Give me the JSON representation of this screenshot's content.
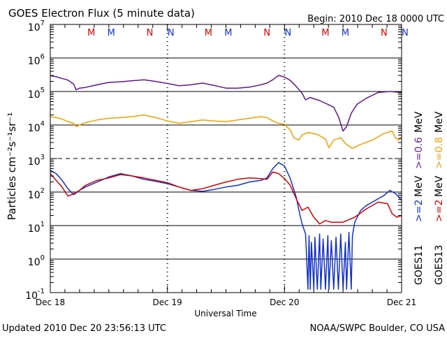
{
  "chart_data": {
    "type": "line",
    "title": "GOES Electron Flux (5 minute data)",
    "begin_label": "Begin: 2010 Dec 18 0000 UTC",
    "xlabel": "Universal Time",
    "ylabel": "Particles cm⁻²s⁻¹sr⁻¹",
    "ylim_log10": [
      -1,
      7
    ],
    "xlim_days": [
      0,
      3
    ],
    "x_ticks": [
      {
        "day": 0,
        "label": "Dec 18"
      },
      {
        "day": 1,
        "label": "Dec 19"
      },
      {
        "day": 2,
        "label": "Dec 20"
      },
      {
        "day": 3,
        "label": "Dec 21"
      }
    ],
    "y_ticks": [
      {
        "base": "10",
        "exp": "7"
      },
      {
        "base": "10",
        "exp": "6"
      },
      {
        "base": "10",
        "exp": "5"
      },
      {
        "base": "10",
        "exp": "4"
      },
      {
        "base": "10",
        "exp": "3"
      },
      {
        "base": "10",
        "exp": "2"
      },
      {
        "base": "10",
        "exp": "1"
      },
      {
        "base": "10",
        "exp": "0"
      },
      {
        "base": "10",
        "exp": "-1"
      }
    ],
    "markers": [
      {
        "day": 0.35,
        "letter": "M",
        "color": "#d40000"
      },
      {
        "day": 0.52,
        "letter": "M",
        "color": "#1432c8"
      },
      {
        "day": 0.85,
        "letter": "N",
        "color": "#d40000"
      },
      {
        "day": 1.03,
        "letter": "N",
        "color": "#1432c8"
      },
      {
        "day": 1.35,
        "letter": "M",
        "color": "#d40000"
      },
      {
        "day": 1.52,
        "letter": "M",
        "color": "#1432c8"
      },
      {
        "day": 1.85,
        "letter": "N",
        "color": "#d40000"
      },
      {
        "day": 2.03,
        "letter": "N",
        "color": "#1432c8"
      },
      {
        "day": 2.35,
        "letter": "M",
        "color": "#d40000"
      },
      {
        "day": 2.52,
        "letter": "M",
        "color": "#1432c8"
      },
      {
        "day": 2.85,
        "letter": "N",
        "color": "#d40000"
      },
      {
        "day": 3.03,
        "letter": "N",
        "color": "#1432c8"
      }
    ],
    "legend": {
      "goes11_label": "GOES11",
      "goes13_label": "GOES13",
      "entries": [
        {
          "text": ">=2",
          "color": "#1432c8"
        },
        {
          "text": ">=2",
          "color": "#d40000"
        },
        {
          "text": ">=0.6",
          "color": "#6a1f9a"
        },
        {
          "text": ">=0.8",
          "color": "#f0a000"
        }
      ],
      "unit": "MeV"
    },
    "series": [
      {
        "name": "GOES11 >=0.6 MeV",
        "color": "#5c1a8c",
        "points": [
          [
            0,
            5.47
          ],
          [
            0.05,
            5.44
          ],
          [
            0.1,
            5.39
          ],
          [
            0.15,
            5.34
          ],
          [
            0.2,
            5.22
          ],
          [
            0.22,
            5.05
          ],
          [
            0.25,
            5.1
          ],
          [
            0.3,
            5.12
          ],
          [
            0.4,
            5.2
          ],
          [
            0.5,
            5.27
          ],
          [
            0.6,
            5.29
          ],
          [
            0.7,
            5.32
          ],
          [
            0.8,
            5.35
          ],
          [
            0.9,
            5.3
          ],
          [
            1.0,
            5.24
          ],
          [
            1.1,
            5.17
          ],
          [
            1.2,
            5.2
          ],
          [
            1.3,
            5.25
          ],
          [
            1.4,
            5.18
          ],
          [
            1.5,
            5.1
          ],
          [
            1.6,
            5.1
          ],
          [
            1.7,
            5.13
          ],
          [
            1.8,
            5.2
          ],
          [
            1.85,
            5.25
          ],
          [
            1.9,
            5.35
          ],
          [
            1.95,
            5.48
          ],
          [
            2.0,
            5.43
          ],
          [
            2.05,
            5.33
          ],
          [
            2.1,
            5.15
          ],
          [
            2.15,
            4.95
          ],
          [
            2.18,
            4.75
          ],
          [
            2.22,
            4.82
          ],
          [
            2.3,
            4.73
          ],
          [
            2.38,
            4.6
          ],
          [
            2.42,
            4.53
          ],
          [
            2.46,
            4.25
          ],
          [
            2.5,
            3.82
          ],
          [
            2.53,
            3.95
          ],
          [
            2.57,
            4.35
          ],
          [
            2.62,
            4.62
          ],
          [
            2.7,
            4.8
          ],
          [
            2.8,
            4.97
          ],
          [
            2.9,
            5.0
          ],
          [
            3.0,
            4.97
          ]
        ]
      },
      {
        "name": "GOES13 >=0.8 MeV",
        "color": "#f0a000",
        "points": [
          [
            0,
            4.25
          ],
          [
            0.05,
            4.22
          ],
          [
            0.1,
            4.18
          ],
          [
            0.15,
            4.1
          ],
          [
            0.2,
            4.05
          ],
          [
            0.22,
            3.95
          ],
          [
            0.25,
            4.0
          ],
          [
            0.3,
            4.07
          ],
          [
            0.4,
            4.15
          ],
          [
            0.5,
            4.2
          ],
          [
            0.6,
            4.22
          ],
          [
            0.7,
            4.25
          ],
          [
            0.8,
            4.3
          ],
          [
            0.9,
            4.22
          ],
          [
            1.0,
            4.12
          ],
          [
            1.1,
            4.05
          ],
          [
            1.2,
            4.1
          ],
          [
            1.3,
            4.15
          ],
          [
            1.4,
            4.12
          ],
          [
            1.5,
            4.1
          ],
          [
            1.6,
            4.15
          ],
          [
            1.7,
            4.2
          ],
          [
            1.8,
            4.25
          ],
          [
            1.85,
            4.22
          ],
          [
            1.9,
            4.12
          ],
          [
            1.95,
            4.05
          ],
          [
            2.0,
            4.02
          ],
          [
            2.05,
            3.85
          ],
          [
            2.08,
            3.62
          ],
          [
            2.12,
            3.55
          ],
          [
            2.15,
            3.7
          ],
          [
            2.2,
            3.78
          ],
          [
            2.28,
            3.72
          ],
          [
            2.35,
            3.58
          ],
          [
            2.38,
            3.32
          ],
          [
            2.42,
            3.55
          ],
          [
            2.48,
            3.62
          ],
          [
            2.52,
            3.45
          ],
          [
            2.58,
            3.3
          ],
          [
            2.65,
            3.42
          ],
          [
            2.75,
            3.55
          ],
          [
            2.85,
            3.75
          ],
          [
            2.92,
            3.82
          ],
          [
            2.95,
            3.6
          ],
          [
            2.98,
            3.55
          ],
          [
            3.0,
            3.65
          ]
        ]
      },
      {
        "name": "GOES11 >=2 MeV",
        "color": "#1432c8",
        "points": [
          [
            0,
            2.65
          ],
          [
            0.05,
            2.55
          ],
          [
            0.1,
            2.35
          ],
          [
            0.15,
            2.1
          ],
          [
            0.2,
            1.92
          ],
          [
            0.25,
            2.05
          ],
          [
            0.3,
            2.15
          ],
          [
            0.4,
            2.3
          ],
          [
            0.5,
            2.45
          ],
          [
            0.6,
            2.55
          ],
          [
            0.7,
            2.48
          ],
          [
            0.8,
            2.38
          ],
          [
            0.9,
            2.32
          ],
          [
            1.0,
            2.25
          ],
          [
            1.1,
            2.15
          ],
          [
            1.2,
            2.05
          ],
          [
            1.3,
            2.02
          ],
          [
            1.4,
            2.08
          ],
          [
            1.5,
            2.15
          ],
          [
            1.6,
            2.2
          ],
          [
            1.7,
            2.3
          ],
          [
            1.8,
            2.35
          ],
          [
            1.85,
            2.42
          ],
          [
            1.9,
            2.7
          ],
          [
            1.95,
            2.88
          ],
          [
            2.0,
            2.78
          ],
          [
            2.05,
            2.4
          ],
          [
            2.1,
            1.85
          ],
          [
            2.13,
            1.35
          ],
          [
            2.15,
            1.05
          ],
          [
            2.18,
            0.75
          ],
          [
            2.2,
            -0.9
          ],
          [
            2.21,
            0.7
          ],
          [
            2.22,
            -0.9
          ],
          [
            2.23,
            0.5
          ],
          [
            2.25,
            -0.9
          ],
          [
            2.26,
            0.65
          ],
          [
            2.28,
            -0.9
          ],
          [
            2.3,
            0.75
          ],
          [
            2.31,
            -0.9
          ],
          [
            2.33,
            0.6
          ],
          [
            2.35,
            -0.9
          ],
          [
            2.37,
            0.7
          ],
          [
            2.38,
            -0.9
          ],
          [
            2.4,
            0.55
          ],
          [
            2.42,
            -0.9
          ],
          [
            2.44,
            0.65
          ],
          [
            2.46,
            -0.9
          ],
          [
            2.48,
            0.75
          ],
          [
            2.5,
            -0.9
          ],
          [
            2.52,
            0.5
          ],
          [
            2.53,
            -0.9
          ],
          [
            2.55,
            0.8
          ],
          [
            2.57,
            -0.9
          ],
          [
            2.58,
            0.7
          ],
          [
            2.6,
            1.1
          ],
          [
            2.65,
            1.45
          ],
          [
            2.7,
            1.6
          ],
          [
            2.75,
            1.7
          ],
          [
            2.8,
            1.8
          ],
          [
            2.85,
            1.9
          ],
          [
            2.9,
            2.05
          ],
          [
            2.95,
            1.95
          ],
          [
            3.0,
            1.75
          ]
        ]
      },
      {
        "name": "GOES13 >=2 MeV",
        "color": "#d40000",
        "points": [
          [
            0,
            2.55
          ],
          [
            0.05,
            2.35
          ],
          [
            0.1,
            2.15
          ],
          [
            0.15,
            1.88
          ],
          [
            0.2,
            1.95
          ],
          [
            0.25,
            2.05
          ],
          [
            0.3,
            2.2
          ],
          [
            0.4,
            2.35
          ],
          [
            0.5,
            2.42
          ],
          [
            0.6,
            2.52
          ],
          [
            0.7,
            2.48
          ],
          [
            0.8,
            2.42
          ],
          [
            0.9,
            2.35
          ],
          [
            1.0,
            2.28
          ],
          [
            1.1,
            2.15
          ],
          [
            1.2,
            2.05
          ],
          [
            1.3,
            2.1
          ],
          [
            1.4,
            2.2
          ],
          [
            1.5,
            2.3
          ],
          [
            1.6,
            2.38
          ],
          [
            1.7,
            2.42
          ],
          [
            1.8,
            2.4
          ],
          [
            1.85,
            2.38
          ],
          [
            1.9,
            2.6
          ],
          [
            1.95,
            2.55
          ],
          [
            2.0,
            2.4
          ],
          [
            2.05,
            2.2
          ],
          [
            2.1,
            1.8
          ],
          [
            2.15,
            1.45
          ],
          [
            2.2,
            1.55
          ],
          [
            2.25,
            1.25
          ],
          [
            2.3,
            1.05
          ],
          [
            2.35,
            1.15
          ],
          [
            2.4,
            1.1
          ],
          [
            2.5,
            1.1
          ],
          [
            2.6,
            1.25
          ],
          [
            2.7,
            1.5
          ],
          [
            2.8,
            1.7
          ],
          [
            2.88,
            1.65
          ],
          [
            2.92,
            1.35
          ],
          [
            2.96,
            1.25
          ],
          [
            3.0,
            1.3
          ]
        ]
      }
    ]
  },
  "footer": {
    "updated": "Updated 2010 Dec 20 23:56:13 UTC",
    "credit": "NOAA/SWPC Boulder, CO USA"
  }
}
